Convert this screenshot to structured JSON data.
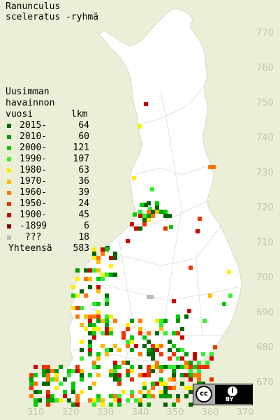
{
  "title": {
    "line1": "Ranunculus",
    "line2": "sceleratus -ryhmä"
  },
  "legend": {
    "header1": "Uusimman",
    "header2": "havainnon",
    "header3_left": "vuosi",
    "header3_right": "lkm",
    "rows": [
      {
        "label": "2015-",
        "count": "64",
        "color": "#006600"
      },
      {
        "label": "2010-",
        "count": "60",
        "color": "#009900"
      },
      {
        "label": "2000-",
        "count": "121",
        "color": "#00cc00"
      },
      {
        "label": "1990-",
        "count": "107",
        "color": "#33ee33"
      },
      {
        "label": "1980-",
        "count": "63",
        "color": "#ffee00"
      },
      {
        "label": "1970-",
        "count": "36",
        "color": "#ffbb00"
      },
      {
        "label": "1960-",
        "count": "39",
        "color": "#ff7700"
      },
      {
        "label": "1950-",
        "count": "24",
        "color": "#ee3300"
      },
      {
        "label": "1900-",
        "count": "45",
        "color": "#cc0000"
      },
      {
        "label": "-1899",
        "count": "6",
        "color": "#880000"
      },
      {
        "label": " ???",
        "count": "18",
        "color": "#bbbbbb"
      }
    ],
    "total_label": "Yhteensä",
    "total_count": "583"
  },
  "grid": {
    "y_ticks": [
      "770",
      "760",
      "750",
      "740",
      "730",
      "720",
      "710",
      "700",
      "690",
      "680",
      "670"
    ],
    "x_ticks": [
      "310",
      "320",
      "330",
      "340",
      "350",
      "360",
      "370"
    ]
  },
  "license": {
    "cc": "cc",
    "by": "BY",
    "person": "i"
  }
}
